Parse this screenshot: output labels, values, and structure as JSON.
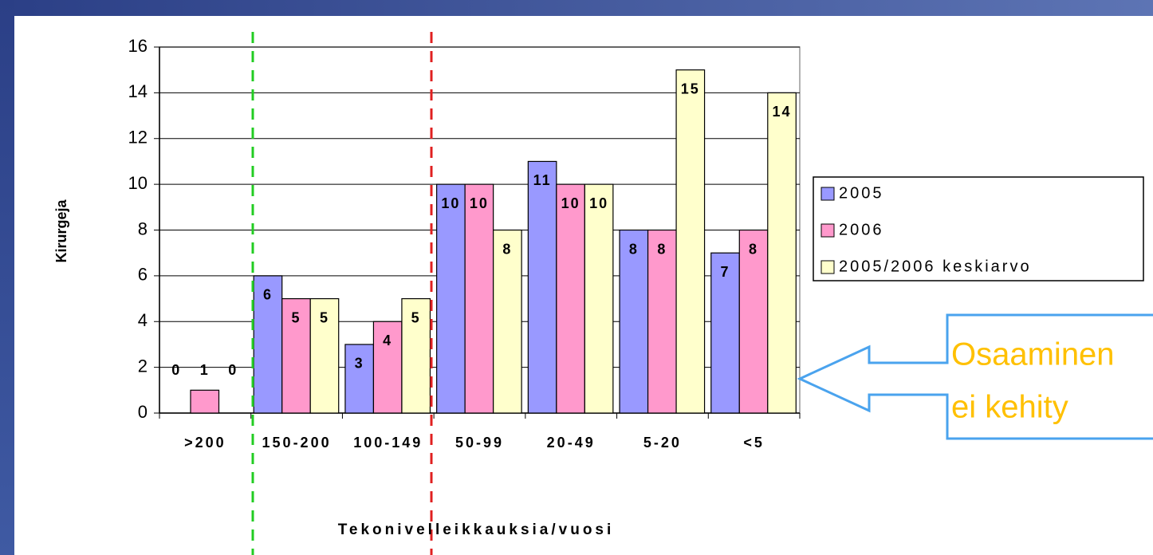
{
  "chart_data": {
    "type": "bar",
    "categories": [
      ">200",
      "150-200",
      "100-149",
      "50-99",
      "20-49",
      "5-20",
      "<5"
    ],
    "series": [
      {
        "name": "2005",
        "color": "#9999ff",
        "values": [
          0,
          6,
          3,
          10,
          11,
          8,
          7
        ]
      },
      {
        "name": "2006",
        "color": "#ff99cc",
        "values": [
          1,
          5,
          4,
          10,
          10,
          8,
          8
        ]
      },
      {
        "name": "2005/2006 keskiarvo",
        "color": "#ffffcc",
        "values": [
          0,
          5,
          5,
          8,
          10,
          15,
          14
        ]
      }
    ],
    "y_label": "Kirurgeja",
    "x_label": "Tekonivelleikkauksia/vuosi",
    "ylim": [
      0,
      16
    ],
    "yticks": [
      0,
      2,
      4,
      6,
      8,
      10,
      12,
      14,
      16
    ],
    "grid": true,
    "legend": "right",
    "annotation": {
      "line1": "Osaaminen",
      "line2": "ei kehity"
    }
  }
}
